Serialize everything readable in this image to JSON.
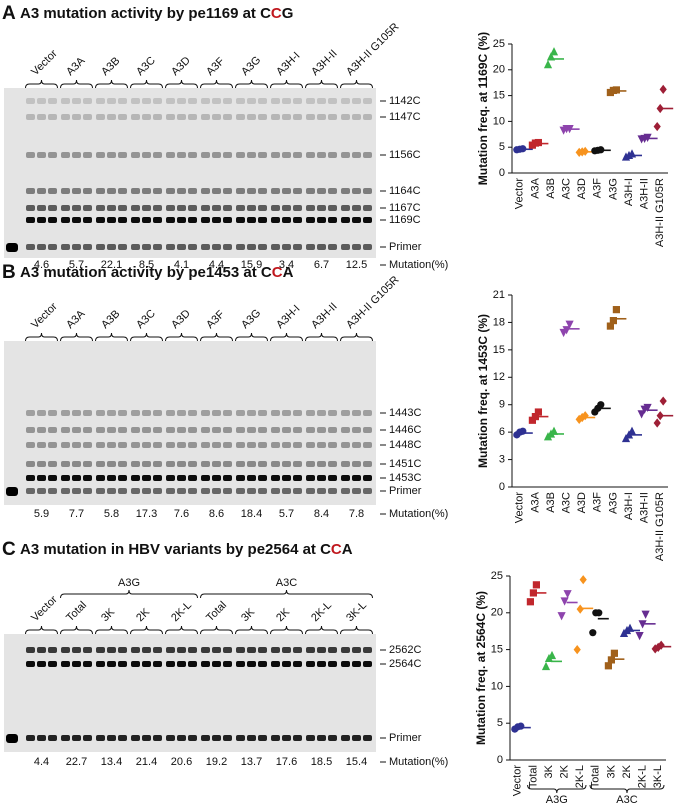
{
  "panels": [
    {
      "letter": "A",
      "title": [
        "A3 mutation activity by pe1169 at C",
        "C",
        "G"
      ],
      "bands": [
        "1142C",
        "1147C",
        "1156C",
        "1164C",
        "1167C",
        "1169C",
        "Primer"
      ],
      "mutation_label": "Mutation(%)",
      "mutation": [
        4.6,
        5.7,
        22.1,
        8.5,
        4.1,
        4.4,
        15.9,
        3.4,
        6.7,
        12.5
      ]
    },
    {
      "letter": "B",
      "title": [
        "A3 mutation activity by pe1453 at C",
        "C",
        "A"
      ],
      "bands": [
        "1443C",
        "1446C",
        "1448C",
        "1451C",
        "1453C",
        "Primer"
      ],
      "mutation_label": "Mutation(%)",
      "mutation": [
        5.9,
        7.7,
        5.8,
        17.3,
        7.6,
        8.6,
        18.4,
        5.7,
        8.4,
        7.8
      ]
    },
    {
      "letter": "C",
      "title": [
        "A3 mutation in HBV variants by pe2564 at C",
        "C",
        "A"
      ],
      "bands": [
        "2562C",
        "2564C",
        "Primer"
      ],
      "mutation_label": "Mutation(%)",
      "mutation": [
        4.4,
        22.7,
        13.4,
        21.4,
        20.6,
        19.2,
        13.7,
        17.6,
        18.5,
        15.4
      ]
    }
  ],
  "chart_data": [
    {
      "type": "scatter",
      "ylabel": "Mutation freq. at 1169C (%)",
      "categories": [
        "Vector",
        "A3A",
        "A3B",
        "A3C",
        "A3D",
        "A3F",
        "A3G",
        "A3H-I",
        "A3H-II",
        "A3H-II G105R"
      ],
      "category_colors": [
        "#111111",
        "#111111",
        "#2f9e3f",
        "#2f9e3f",
        "#111111",
        "#111111",
        "#2f9e3f",
        "#111111",
        "#2f9e3f",
        "#2f9e3f"
      ],
      "ylim": [
        0,
        25
      ],
      "yticks": [
        0,
        5,
        10,
        15,
        20,
        25
      ],
      "series": [
        {
          "color": "#2e3192",
          "marker": "circle",
          "values": [
            4.5,
            4.6,
            4.7
          ],
          "mean": 4.6
        },
        {
          "color": "#c1272d",
          "marker": "square",
          "values": [
            5.4,
            5.8,
            5.9
          ],
          "mean": 5.7
        },
        {
          "color": "#39b54a",
          "marker": "triangle",
          "values": [
            21.0,
            22.5,
            23.5
          ],
          "mean": 22.1
        },
        {
          "color": "#8e44ad",
          "marker": "triangle-down",
          "values": [
            8.3,
            8.6,
            8.6
          ],
          "mean": 8.5
        },
        {
          "color": "#f7931e",
          "marker": "diamond",
          "values": [
            4.0,
            4.1,
            4.2
          ],
          "mean": 4.1
        },
        {
          "color": "#111111",
          "marker": "circle",
          "values": [
            4.3,
            4.4,
            4.5
          ],
          "mean": 4.4
        },
        {
          "color": "#a0601a",
          "marker": "square",
          "values": [
            15.6,
            16.0,
            16.1
          ],
          "mean": 15.9
        },
        {
          "color": "#2e3192",
          "marker": "triangle",
          "values": [
            3.1,
            3.4,
            3.7
          ],
          "mean": 3.4
        },
        {
          "color": "#662d91",
          "marker": "triangle-down",
          "values": [
            6.6,
            6.7,
            6.9
          ],
          "mean": 6.7
        },
        {
          "color": "#9e1f36",
          "marker": "diamond",
          "values": [
            9.0,
            12.5,
            16.2
          ],
          "mean": 12.5
        }
      ]
    },
    {
      "type": "scatter",
      "ylabel": "Mutation freq. at 1453C (%)",
      "categories": [
        "Vector",
        "A3A",
        "A3B",
        "A3C",
        "A3D",
        "A3F",
        "A3G",
        "A3H-I",
        "A3H-II",
        "A3H-II G105R"
      ],
      "category_colors": [
        "#111111",
        "#111111",
        "#111111",
        "#2f9e3f",
        "#111111",
        "#111111",
        "#2f9e3f",
        "#111111",
        "#2f9e3f",
        "#2f9e3f"
      ],
      "ylim": [
        0,
        21
      ],
      "yticks": [
        0,
        3,
        6,
        9,
        12,
        15,
        18,
        21
      ],
      "series": [
        {
          "color": "#2e3192",
          "marker": "circle",
          "values": [
            5.7,
            6.0,
            6.1
          ],
          "mean": 5.9
        },
        {
          "color": "#c1272d",
          "marker": "square",
          "values": [
            7.3,
            7.7,
            8.2
          ],
          "mean": 7.7
        },
        {
          "color": "#39b54a",
          "marker": "triangle",
          "values": [
            5.5,
            5.8,
            6.1
          ],
          "mean": 5.8
        },
        {
          "color": "#8e44ad",
          "marker": "triangle-down",
          "values": [
            16.9,
            17.2,
            17.8
          ],
          "mean": 17.3
        },
        {
          "color": "#f7931e",
          "marker": "diamond",
          "values": [
            7.4,
            7.6,
            7.8
          ],
          "mean": 7.6
        },
        {
          "color": "#111111",
          "marker": "circle",
          "values": [
            8.2,
            8.6,
            9.0
          ],
          "mean": 8.6
        },
        {
          "color": "#a0601a",
          "marker": "square",
          "values": [
            17.6,
            18.2,
            19.4
          ],
          "mean": 18.4
        },
        {
          "color": "#2e3192",
          "marker": "triangle",
          "values": [
            5.3,
            5.7,
            6.1
          ],
          "mean": 5.7
        },
        {
          "color": "#662d91",
          "marker": "triangle-down",
          "values": [
            8.0,
            8.5,
            8.7
          ],
          "mean": 8.4
        },
        {
          "color": "#9e1f36",
          "marker": "diamond",
          "values": [
            7.0,
            7.8,
            9.4
          ],
          "mean": 7.8
        }
      ]
    },
    {
      "type": "scatter",
      "ylabel": "Mutation freq. at 2564C (%)",
      "categories": [
        "Vector",
        "Total",
        "3K",
        "2K",
        "2K-L",
        "Total",
        "3K",
        "2K",
        "2K-L",
        "3K-L"
      ],
      "category_colors": [
        "#111111",
        "#111111",
        "#111111",
        "#111111",
        "#111111",
        "#111111",
        "#111111",
        "#111111",
        "#111111",
        "#111111"
      ],
      "groups": [
        {
          "label": "A3G",
          "first": 1,
          "last": 4
        },
        {
          "label": "A3C",
          "first": 5,
          "last": 9
        }
      ],
      "ylim": [
        0,
        25
      ],
      "yticks": [
        0,
        5,
        10,
        15,
        20,
        25
      ],
      "series": [
        {
          "color": "#2e3192",
          "marker": "circle",
          "values": [
            4.2,
            4.5,
            4.6
          ],
          "mean": 4.4
        },
        {
          "color": "#c1272d",
          "marker": "square",
          "values": [
            21.5,
            22.7,
            23.8
          ],
          "mean": 22.7
        },
        {
          "color": "#39b54a",
          "marker": "triangle",
          "values": [
            12.7,
            13.8,
            14.2
          ],
          "mean": 13.4
        },
        {
          "color": "#8e44ad",
          "marker": "triangle-down",
          "values": [
            19.6,
            21.6,
            22.6
          ],
          "mean": 21.4
        },
        {
          "color": "#f7931e",
          "marker": "diamond",
          "values": [
            15.0,
            20.5,
            24.5
          ],
          "mean": 20.6
        },
        {
          "color": "#111111",
          "marker": "circle",
          "values": [
            17.3,
            20.0,
            20.0
          ],
          "mean": 19.2
        },
        {
          "color": "#a0601a",
          "marker": "square",
          "values": [
            12.8,
            13.6,
            14.5
          ],
          "mean": 13.7
        },
        {
          "color": "#2e3192",
          "marker": "triangle",
          "values": [
            17.2,
            17.6,
            17.9
          ],
          "mean": 17.6
        },
        {
          "color": "#662d91",
          "marker": "triangle-down",
          "values": [
            16.9,
            18.5,
            19.8
          ],
          "mean": 18.5
        },
        {
          "color": "#9e1f36",
          "marker": "diamond",
          "values": [
            15.1,
            15.3,
            15.6
          ],
          "mean": 15.4
        }
      ]
    }
  ]
}
